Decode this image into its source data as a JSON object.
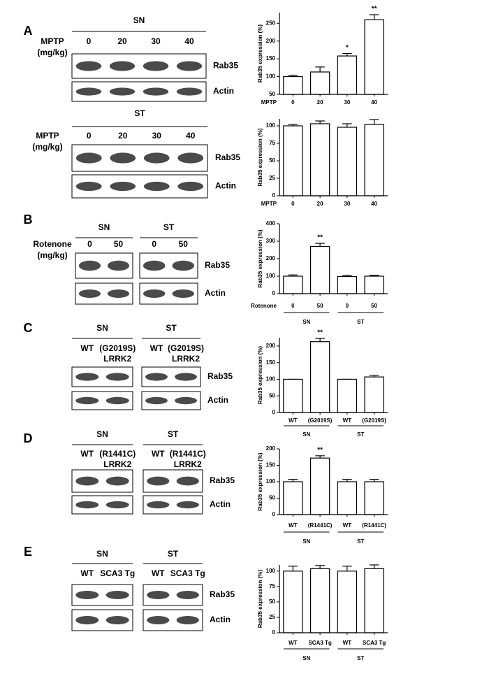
{
  "blots": [
    {
      "panel": "A",
      "dose_label": [
        "MPTP",
        "(mg/kg)"
      ],
      "rows": [
        "Rab35",
        "Actin"
      ],
      "groups": [
        {
          "name": "SN",
          "lanes": [
            [
              "0"
            ],
            [
              "20"
            ],
            [
              "30"
            ],
            [
              "40"
            ]
          ]
        }
      ]
    },
    {
      "dose_label": [
        "MPTP",
        "(mg/kg)"
      ],
      "rows": [
        "Rab35",
        "Actin"
      ],
      "groups": [
        {
          "name": "ST",
          "lanes": [
            [
              "0"
            ],
            [
              "20"
            ],
            [
              "30"
            ],
            [
              "40"
            ]
          ]
        }
      ]
    },
    {
      "panel": "B",
      "dose_label": [
        "Rotenone",
        "(mg/kg)"
      ],
      "rows": [
        "Rab35",
        "Actin"
      ],
      "groups": [
        {
          "name": "SN",
          "lanes": [
            [
              "0"
            ],
            [
              "50"
            ]
          ]
        },
        {
          "name": "ST",
          "lanes": [
            [
              "0"
            ],
            [
              "50"
            ]
          ]
        }
      ]
    },
    {
      "panel": "C",
      "rows": [
        "Rab35",
        "Actin"
      ],
      "groups": [
        {
          "name": "SN",
          "lanes": [
            [
              "WT"
            ],
            [
              "(G2019S)",
              "LRRK2"
            ]
          ]
        },
        {
          "name": "ST",
          "lanes": [
            [
              "WT"
            ],
            [
              "(G2019S)",
              "LRRK2"
            ]
          ]
        }
      ]
    },
    {
      "panel": "D",
      "rows": [
        "Rab35",
        "Actin"
      ],
      "groups": [
        {
          "name": "SN",
          "lanes": [
            [
              "WT"
            ],
            [
              "(R1441C)",
              "LRRK2"
            ]
          ]
        },
        {
          "name": "ST",
          "lanes": [
            [
              "WT"
            ],
            [
              "(R1441C)",
              "LRRK2"
            ]
          ]
        }
      ]
    },
    {
      "panel": "E",
      "rows": [
        "Rab35",
        "Actin"
      ],
      "groups": [
        {
          "name": "SN",
          "lanes": [
            [
              "WT"
            ],
            [
              "SCA3 Tg"
            ]
          ]
        },
        {
          "name": "ST",
          "lanes": [
            [
              "WT"
            ],
            [
              "SCA3 Tg"
            ]
          ]
        }
      ]
    }
  ],
  "chart_data": [
    {
      "type": "bar",
      "ylabel": "Rab35 expression (%)",
      "xlabel": "MPTP",
      "color": "#ffffff",
      "categories": [
        "0",
        "20",
        "30",
        "40"
      ],
      "values": [
        100,
        113,
        158,
        260
      ],
      "errors": [
        4,
        14,
        7,
        14
      ],
      "annotations": [
        null,
        null,
        "*",
        "**"
      ],
      "ylim": [
        50,
        280
      ],
      "yticks": [
        50,
        100,
        150,
        200,
        250
      ]
    },
    {
      "type": "bar",
      "ylabel": "Rab35 expression (%)",
      "xlabel": "MPTP",
      "color": "#ffffff",
      "categories": [
        "0",
        "20",
        "30",
        "40"
      ],
      "values": [
        100,
        103,
        98,
        102
      ],
      "errors": [
        2,
        4,
        5,
        7
      ],
      "ylim": [
        0,
        110
      ],
      "yticks": [
        0,
        25,
        50,
        75,
        100
      ]
    },
    {
      "type": "bar",
      "ylabel": "Rab35 expression (%)",
      "xlabel": "Rotenone",
      "color": "#ffffff",
      "categories": [
        "0",
        "50",
        "0",
        "50"
      ],
      "groups": [
        "SN",
        "ST"
      ],
      "values": [
        100,
        270,
        98,
        100
      ],
      "errors": [
        7,
        18,
        7,
        5
      ],
      "annotations": [
        null,
        "**",
        null,
        null
      ],
      "ylim": [
        0,
        400
      ],
      "yticks": [
        0,
        100,
        200,
        300,
        400
      ]
    },
    {
      "type": "bar",
      "ylabel": "Rab35 expression (%)",
      "color": "#ffffff",
      "categories": [
        "WT",
        "(G2019S)",
        "WT",
        "(G2019S)"
      ],
      "groups": [
        "SN",
        "ST"
      ],
      "values": [
        100,
        213,
        100,
        107
      ],
      "errors": [
        0,
        10,
        0,
        5
      ],
      "annotations": [
        null,
        "**",
        null,
        null
      ],
      "ylim": [
        0,
        225
      ],
      "yticks": [
        0,
        50,
        100,
        150,
        200
      ]
    },
    {
      "type": "bar",
      "ylabel": "Rab35 expression (%)",
      "color": "#ffffff",
      "categories": [
        "WT",
        "(R1441C)",
        "WT",
        "(R1441C)"
      ],
      "groups": [
        "SN",
        "ST"
      ],
      "values": [
        100,
        172,
        100,
        100
      ],
      "errors": [
        7,
        7,
        7,
        7
      ],
      "annotations": [
        null,
        "**",
        null,
        null
      ],
      "ylim": [
        0,
        200
      ],
      "yticks": [
        0,
        50,
        100,
        150,
        200
      ]
    },
    {
      "type": "bar",
      "ylabel": "Rab35 expression (%)",
      "color": "#ffffff",
      "categories": [
        "WT",
        "SCA3 Tg",
        "WT",
        "SCA3 Tg"
      ],
      "groups": [
        "SN",
        "ST"
      ],
      "values": [
        100,
        104,
        100,
        104
      ],
      "errors": [
        8,
        5,
        8,
        6
      ],
      "ylim": [
        0,
        110
      ],
      "yticks": [
        0,
        25,
        50,
        75,
        100
      ]
    }
  ]
}
